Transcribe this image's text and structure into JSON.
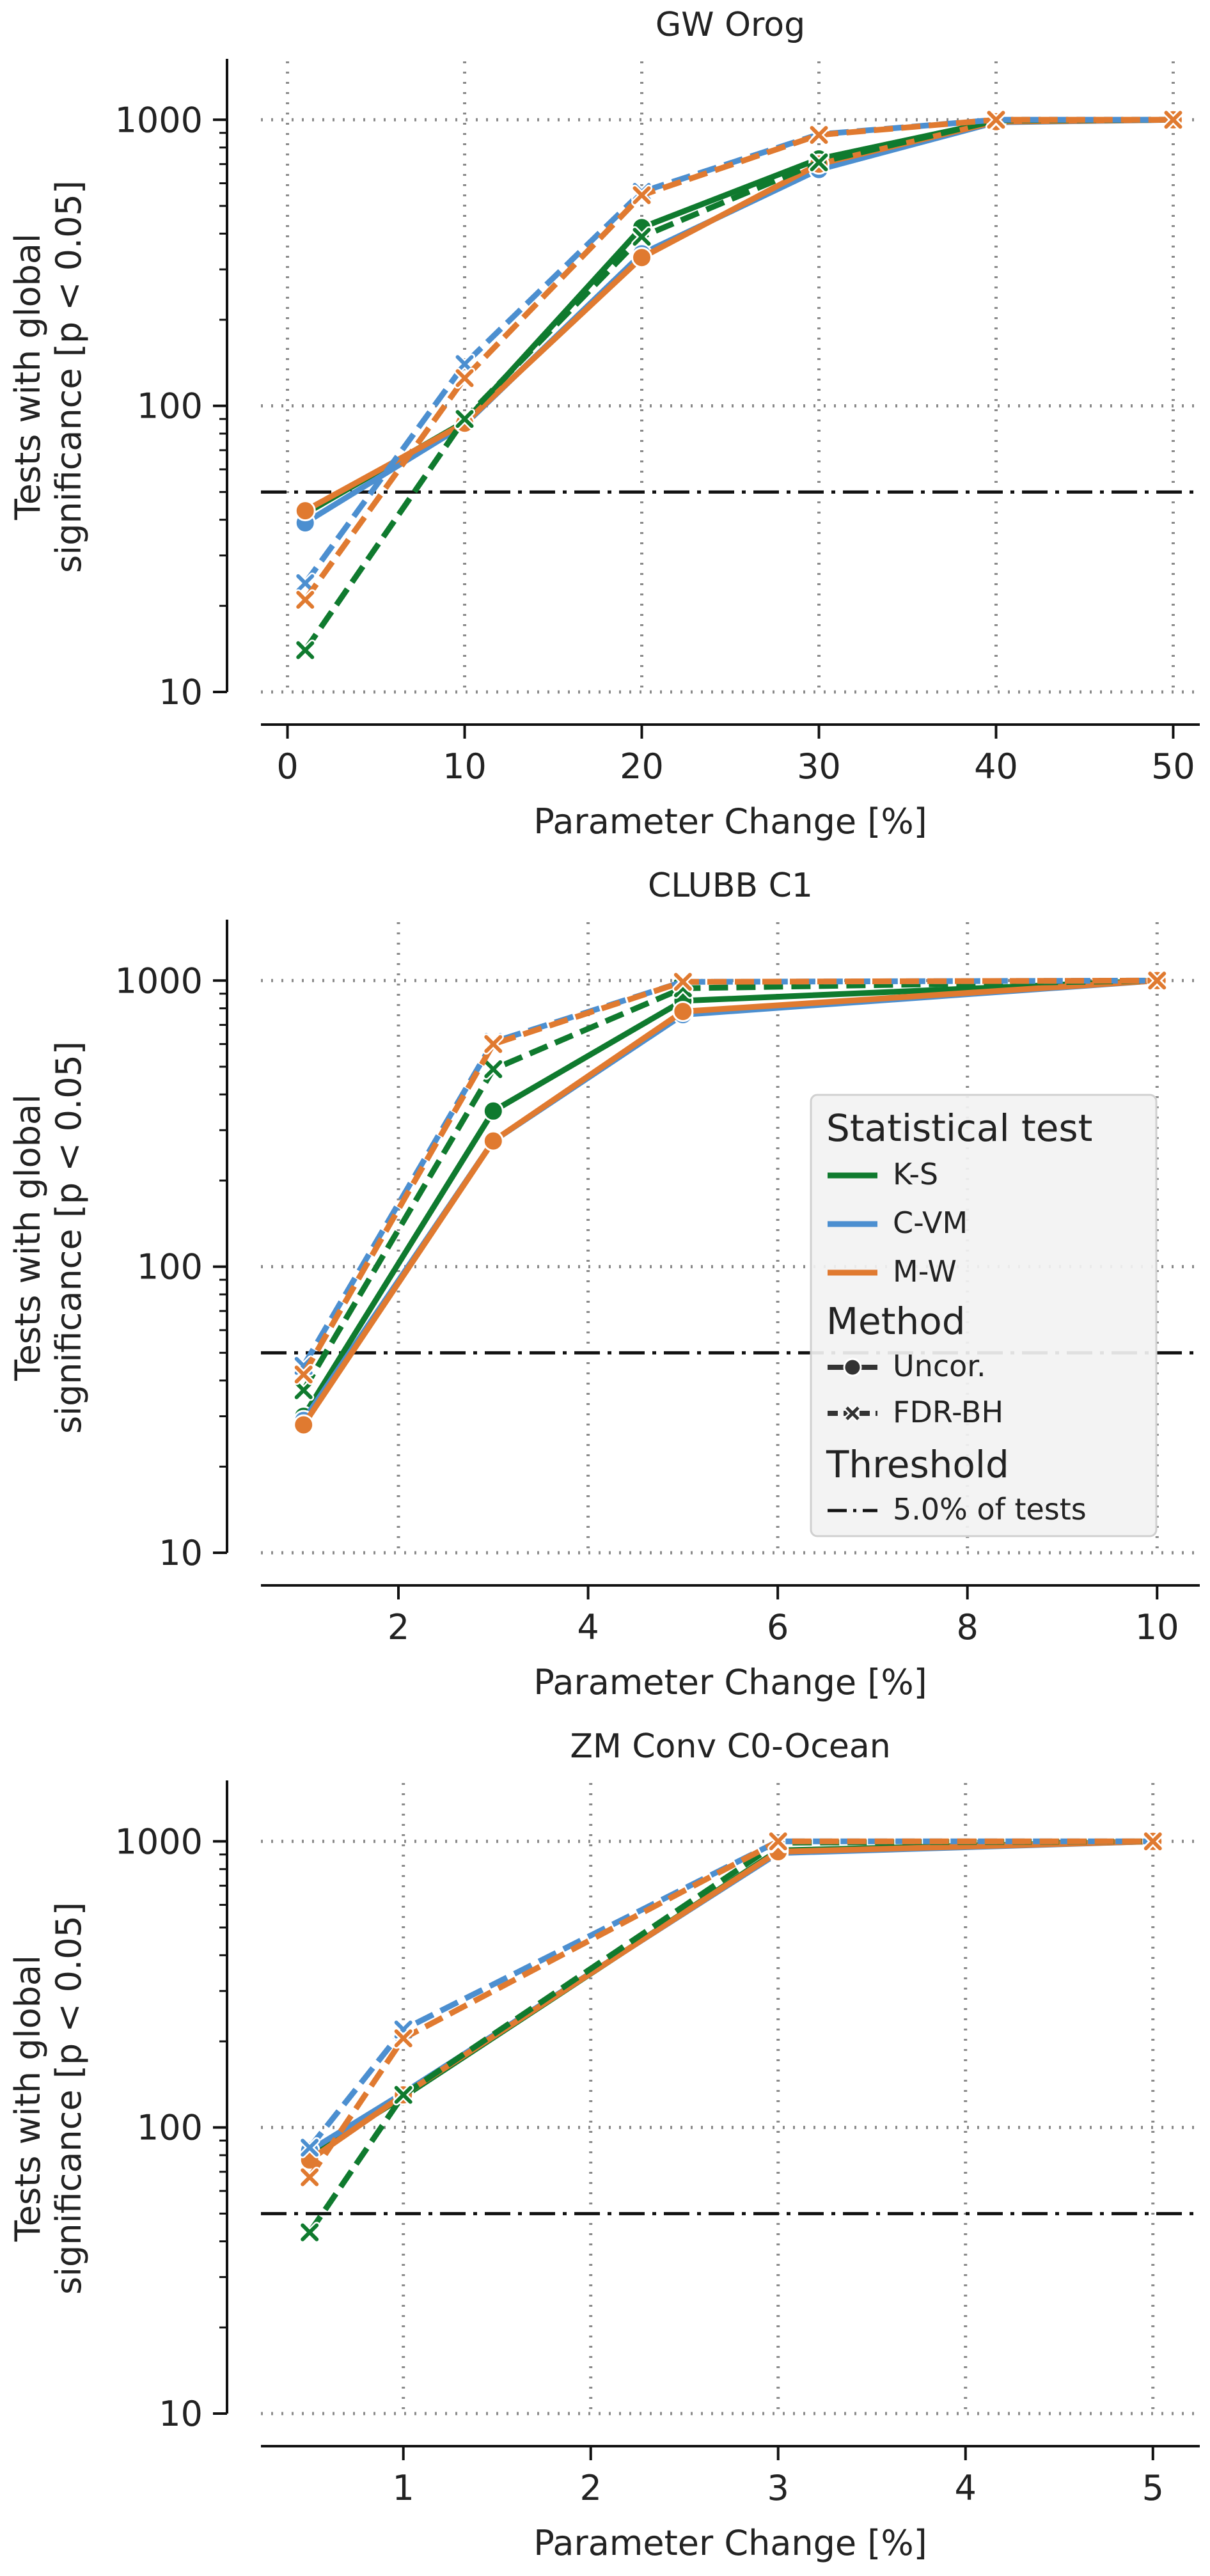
{
  "colors": {
    "K-S": "#0f7a2e",
    "C-VM": "#4c8fd0",
    "M-W": "#e07a30",
    "threshold": "#111111",
    "grid": "#8a8a8a"
  },
  "legend": {
    "stat_title": "Statistical test",
    "stat_items": [
      "K-S",
      "C-VM",
      "M-W"
    ],
    "method_title": "Method",
    "method_items": [
      "Uncor.",
      "FDR-BH"
    ],
    "threshold_title": "Threshold",
    "threshold_items": [
      "5.0% of tests"
    ]
  },
  "chart_data": [
    {
      "type": "line",
      "title": "GW Orog",
      "xlabel": "Parameter Change [%]",
      "ylabel": [
        "Tests with global",
        "significance [p < 0.05]"
      ],
      "yscale": "log",
      "xlim": [
        -1.5,
        51.5
      ],
      "ylim": [
        10,
        1600
      ],
      "xticks": [
        0,
        10,
        20,
        30,
        40,
        50
      ],
      "yticks": [
        10,
        100,
        1000
      ],
      "x": [
        1,
        10,
        20,
        30,
        40,
        50
      ],
      "threshold": 50,
      "series": [
        {
          "test": "K-S",
          "method": "Uncor.",
          "values": [
            42,
            88,
            420,
            730,
            990,
            1000
          ]
        },
        {
          "test": "C-VM",
          "method": "Uncor.",
          "values": [
            39,
            86,
            340,
            670,
            980,
            1000
          ]
        },
        {
          "test": "M-W",
          "method": "Uncor.",
          "values": [
            43,
            87,
            330,
            700,
            985,
            1000
          ]
        },
        {
          "test": "K-S",
          "method": "FDR-BH",
          "values": [
            14,
            90,
            390,
            710,
            995,
            1000
          ]
        },
        {
          "test": "C-VM",
          "method": "FDR-BH",
          "values": [
            24,
            140,
            560,
            890,
            1000,
            1000
          ]
        },
        {
          "test": "M-W",
          "method": "FDR-BH",
          "values": [
            21,
            125,
            545,
            885,
            1000,
            1000
          ]
        }
      ]
    },
    {
      "type": "line",
      "title": "CLUBB C1",
      "xlabel": "Parameter Change [%]",
      "ylabel": [
        "Tests with global",
        "significance [p < 0.05]"
      ],
      "yscale": "log",
      "xlim": [
        0.55,
        10.45
      ],
      "ylim": [
        10,
        1600
      ],
      "xticks": [
        2,
        4,
        6,
        8,
        10
      ],
      "yticks": [
        10,
        100,
        1000
      ],
      "x": [
        1,
        3,
        5,
        10
      ],
      "threshold": 50,
      "series": [
        {
          "test": "K-S",
          "method": "Uncor.",
          "values": [
            30,
            350,
            850,
            1000
          ]
        },
        {
          "test": "C-VM",
          "method": "Uncor.",
          "values": [
            29,
            275,
            760,
            1000
          ]
        },
        {
          "test": "M-W",
          "method": "Uncor.",
          "values": [
            28,
            275,
            780,
            1000
          ]
        },
        {
          "test": "K-S",
          "method": "FDR-BH",
          "values": [
            37,
            490,
            940,
            1000
          ]
        },
        {
          "test": "C-VM",
          "method": "FDR-BH",
          "values": [
            45,
            610,
            990,
            1000
          ]
        },
        {
          "test": "M-W",
          "method": "FDR-BH",
          "values": [
            42,
            600,
            990,
            1000
          ]
        }
      ]
    },
    {
      "type": "line",
      "title": "ZM Conv C0-Ocean",
      "xlabel": "Parameter Change [%]",
      "ylabel": [
        "Tests with global",
        "significance [p < 0.05]"
      ],
      "yscale": "log",
      "xlim": [
        0.24,
        5.25
      ],
      "ylim": [
        10,
        1600
      ],
      "xticks": [
        1,
        2,
        3,
        4,
        5
      ],
      "yticks": [
        10,
        100,
        1000
      ],
      "x": [
        0.5,
        1,
        3,
        5
      ],
      "threshold": 50,
      "series": [
        {
          "test": "K-S",
          "method": "Uncor.",
          "values": [
            80,
            128,
            930,
            1000
          ]
        },
        {
          "test": "C-VM",
          "method": "Uncor.",
          "values": [
            83,
            132,
            910,
            1000
          ]
        },
        {
          "test": "M-W",
          "method": "Uncor.",
          "values": [
            77,
            130,
            920,
            1000
          ]
        },
        {
          "test": "K-S",
          "method": "FDR-BH",
          "values": [
            43,
            130,
            990,
            1000
          ]
        },
        {
          "test": "C-VM",
          "method": "FDR-BH",
          "values": [
            85,
            220,
            1000,
            1000
          ]
        },
        {
          "test": "M-W",
          "method": "FDR-BH",
          "values": [
            67,
            205,
            1000,
            1000
          ]
        }
      ]
    }
  ]
}
